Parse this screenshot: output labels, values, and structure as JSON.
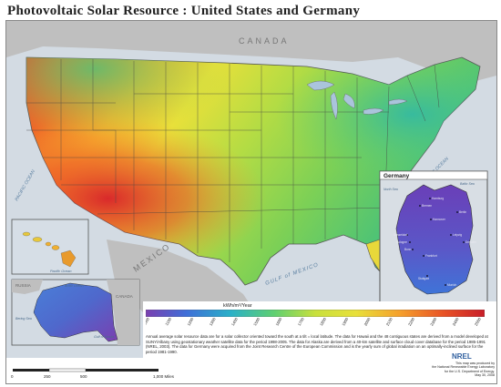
{
  "title": "Photovoltaic Solar Resource : United States and Germany",
  "labels": {
    "canada": "CANADA",
    "mexico": "MEXICO",
    "pacific_ocean": "PACIFIC OCEAN",
    "atlantic_ocean": "ATLANTIC OCEAN",
    "gulf_of_mexico": "GULF of MEXICO"
  },
  "insets": {
    "germany": {
      "title": "Germany",
      "north_sea": "North Sea",
      "baltic_sea": "Baltic Sea",
      "cities": [
        "Hamburg",
        "Bremen",
        "Berlin",
        "Hannover",
        "Dusseldorf",
        "Cologne",
        "Bonn",
        "Leipzig",
        "Dresden",
        "Frankfurt",
        "Stuttgart",
        "Munich"
      ]
    },
    "hawaii": {
      "ocean": "Pacific Ocean"
    },
    "alaska": {
      "russia": "RUSSIA",
      "arctic_ocean": "Arctic Ocean",
      "canada": "CANADA",
      "bering_sea": "Bering Sea",
      "gulf_of_alaska": "Gulf of Alaska"
    }
  },
  "legend": {
    "title": "kWh/m²/Year",
    "ticks": [
      "1000",
      "1100",
      "1200",
      "1300",
      "1400",
      "1500",
      "1600",
      "1700",
      "1800",
      "1900",
      "2000",
      "2100",
      "2200",
      "2300",
      "2400",
      "2500"
    ],
    "colors": [
      "#7a3fb0",
      "#5b54c8",
      "#3f6fd8",
      "#2f8fd8",
      "#2ab0c8",
      "#35c4a0",
      "#5fd070",
      "#9ad84e",
      "#c8e03c",
      "#e8e03a",
      "#f5c832",
      "#f5a02c",
      "#f07a28",
      "#e85226",
      "#d8302a",
      "#c81e28"
    ]
  },
  "caption": "Annual average solar resource data are for a solar collector oriented toward the south at a tilt = local latitude.  The data for Hawaii and the 48 contiguous states are derived from a model developed at SUNY/Albany using geostationary weather satellite data for the period 1998-2005. The data for Alaska are derived from a 40-km satellite and surface cloud cover database for the period 1985-1991 (NREL, 2003).  The data for Germany were acquired from the Joint Research Centre of the European Commission and is the yearly sum of global irradiation on an optimally-inclined surface for the period 1981-1990.",
  "scale": {
    "marks": [
      "0",
      "250",
      "500",
      "1,000 Miles"
    ]
  },
  "credit": {
    "lines": [
      "This map was produced by",
      "the National Renewable Energy Laboratory",
      "for the U.S. Department of Energy.",
      "May 30, 2008"
    ],
    "logo": "NREL"
  }
}
